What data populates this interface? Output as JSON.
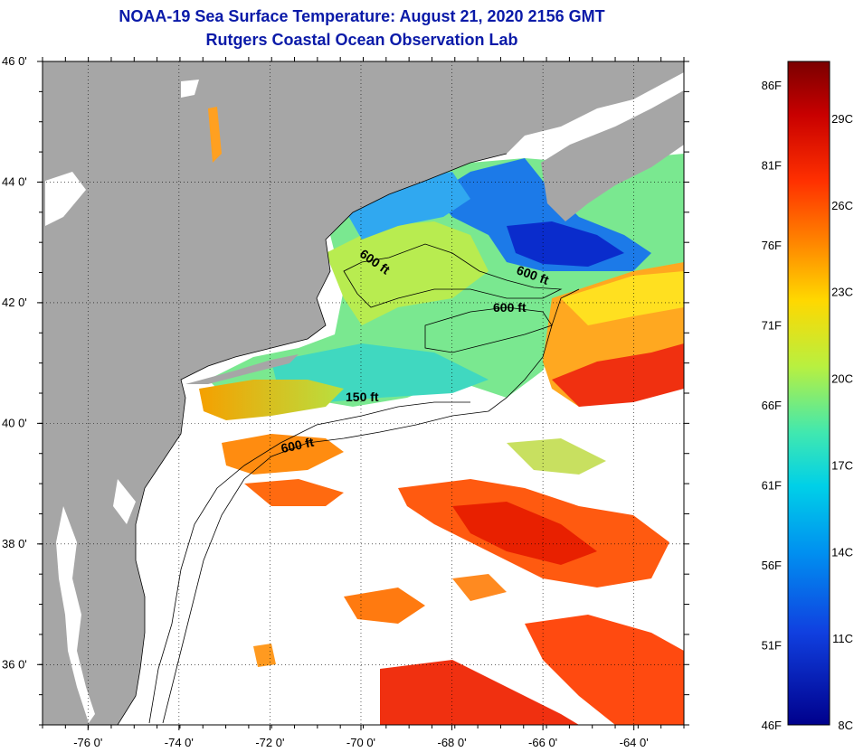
{
  "header": {
    "title_line1": "NOAA-19 Sea Surface Temperature:  August 21, 2020 2156 GMT",
    "title_line2": "Rutgers Coastal Ocean Observation Lab"
  },
  "map": {
    "lat_range": [
      35,
      46
    ],
    "lon_range": [
      -77,
      -62.9
    ],
    "lat_ticks": [
      {
        "value": 46,
        "label": "46 0'"
      },
      {
        "value": 44,
        "label": "44 0'"
      },
      {
        "value": 42,
        "label": "42 0'"
      },
      {
        "value": 40,
        "label": "40 0'"
      },
      {
        "value": 38,
        "label": "38 0'"
      },
      {
        "value": 36,
        "label": "36 0'"
      }
    ],
    "lon_ticks": [
      {
        "value": -76,
        "label": "-76 0'"
      },
      {
        "value": -74,
        "label": "-74 0'"
      },
      {
        "value": -72,
        "label": "-72 0'"
      },
      {
        "value": -70,
        "label": "-70 0'"
      },
      {
        "value": -68,
        "label": "-68 0'"
      },
      {
        "value": -66,
        "label": "-66 0'"
      },
      {
        "value": -64,
        "label": "-64 0'"
      }
    ],
    "contour_labels": [
      "600 ft",
      "600 ft",
      "600 ft",
      "150 ft",
      "600 ft"
    ],
    "colors": {
      "land": "#a6a6a6",
      "cloud": "#ffffff",
      "grid": "#000000"
    }
  },
  "colorbar": {
    "fahrenheit_labels": [
      "86F",
      "81F",
      "76F",
      "71F",
      "66F",
      "61F",
      "56F",
      "51F",
      "46F"
    ],
    "celsius_labels": [
      "29C",
      "26C",
      "23C",
      "20C",
      "17C",
      "14C",
      "11C",
      "8C"
    ],
    "stops": [
      "#7a0000",
      "#c80000",
      "#ff3000",
      "#ff8c00",
      "#ffd800",
      "#b8f040",
      "#40e8b0",
      "#00d0e8",
      "#0090f0",
      "#1040e0",
      "#00008c"
    ]
  }
}
